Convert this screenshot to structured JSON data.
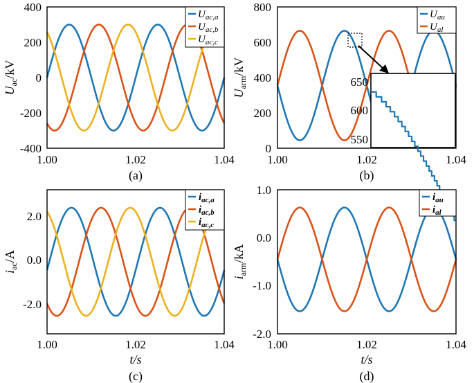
{
  "colors": {
    "blue": "#1f77b4",
    "orange": "#d95319",
    "yellow": "#edb120"
  },
  "chart_data": [
    {
      "id": "a",
      "type": "line",
      "caption": "(a)",
      "ylabel": "U_ac/kV",
      "xlim": [
        1.0,
        1.04
      ],
      "ylim": [
        -400,
        400
      ],
      "xticks": [
        "1.00",
        "1.02",
        "1.04"
      ],
      "yticks": [
        "-400",
        "-200",
        "0",
        "200",
        "400"
      ],
      "legend_position": "top-right",
      "series": [
        {
          "name": "U_ac,a",
          "color": "blue",
          "amplitude": 300,
          "offset": 0,
          "frequency_hz": 50,
          "peak_time_s": 1.005
        },
        {
          "name": "U_ac,b",
          "color": "orange",
          "amplitude": 300,
          "offset": 0,
          "frequency_hz": 50,
          "peak_time_s": 1.0117
        },
        {
          "name": "U_ac,c",
          "color": "yellow",
          "amplitude": 300,
          "offset": 0,
          "frequency_hz": 50,
          "peak_time_s": 0.9983
        }
      ]
    },
    {
      "id": "b",
      "type": "line",
      "caption": "(b)",
      "ylabel": "U_arm/kV",
      "xlim": [
        1.0,
        1.04
      ],
      "ylim": [
        0,
        800
      ],
      "xticks": [
        "1.00",
        "1.02",
        "1.04"
      ],
      "yticks": [
        "0",
        "200",
        "400",
        "600",
        "800"
      ],
      "legend_position": "top-right",
      "series": [
        {
          "name": "U_au",
          "color": "blue",
          "amplitude": 310,
          "offset": 355,
          "frequency_hz": 50,
          "peak_time_s": 1.015
        },
        {
          "name": "U_al",
          "color": "orange",
          "amplitude": 310,
          "offset": 355,
          "frequency_hz": 50,
          "peak_time_s": 1.005
        }
      ],
      "inset": {
        "ylim": [
          550,
          670
        ],
        "yticks": [
          "650",
          "600",
          "550"
        ],
        "x_window": [
          1.0162,
          1.0192
        ],
        "step_kV": 8,
        "zoom_x": [
          1.0157,
          1.0165
        ],
        "zoom_y": [
          570,
          640
        ]
      }
    },
    {
      "id": "c",
      "type": "line",
      "caption": "(c)",
      "ylabel": "i_ac/A",
      "xlabel": "t/s",
      "xlim": [
        1.0,
        1.04
      ],
      "ylim": [
        -2.8,
        2.8
      ],
      "xticks": [
        "1.00",
        "1.02",
        "1.04"
      ],
      "yticks": [
        "2.0",
        "0.0",
        "-2.0"
      ],
      "ytick_values": [
        2.0,
        0.0,
        -2.0
      ],
      "legend_position": "top-right",
      "series": [
        {
          "name": "i_ac,a",
          "color": "blue",
          "amplitude": 2.1,
          "offset": 0,
          "frequency_hz": 50,
          "peak_time_s": 1.0055
        },
        {
          "name": "i_ac,b",
          "color": "orange",
          "amplitude": 2.1,
          "offset": 0,
          "frequency_hz": 50,
          "peak_time_s": 1.0122
        },
        {
          "name": "i_ac,c",
          "color": "yellow",
          "amplitude": 2.1,
          "offset": 0,
          "frequency_hz": 50,
          "peak_time_s": 0.9988
        }
      ]
    },
    {
      "id": "d",
      "type": "line",
      "caption": "(d)",
      "ylabel": "i_arm/kA",
      "xlabel": "t/s",
      "xlim": [
        1.0,
        1.04
      ],
      "ylim": [
        -2.0,
        1.0
      ],
      "xticks": [
        "1.00",
        "1.02",
        "1.04"
      ],
      "yticks": [
        "1.0",
        "0.0",
        "-1.0",
        "-2.0"
      ],
      "ytick_values": [
        1.0,
        0.0,
        -1.0,
        -2.0
      ],
      "legend_position": "top-right",
      "series": [
        {
          "name": "i_au",
          "color": "blue",
          "amplitude": 1.08,
          "offset": -0.45,
          "frequency_hz": 50,
          "peak_time_s": 1.015
        },
        {
          "name": "i_al",
          "color": "orange",
          "amplitude": 1.08,
          "offset": -0.45,
          "frequency_hz": 50,
          "peak_time_s": 1.005
        }
      ]
    }
  ]
}
